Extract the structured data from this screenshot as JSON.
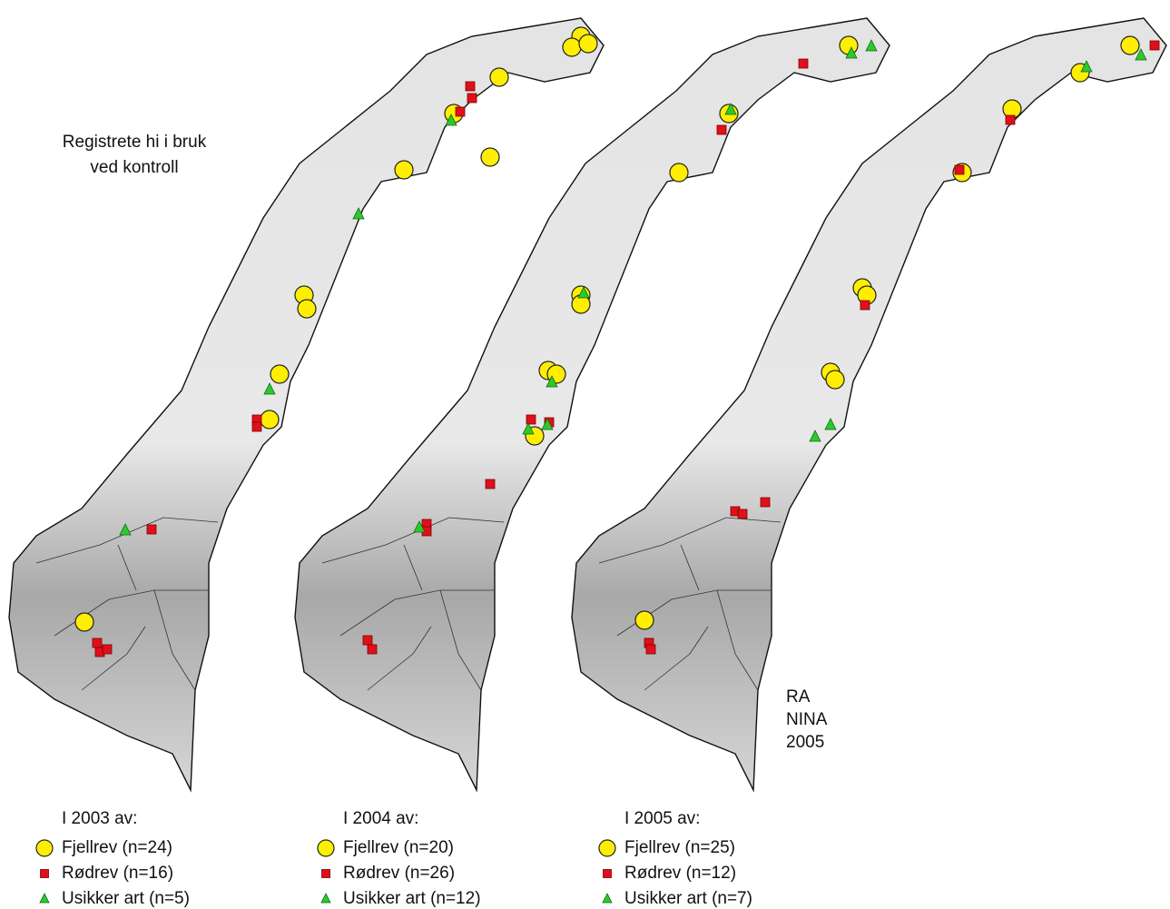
{
  "title": [
    "Registrete hi i bruk",
    "ved kontroll"
  ],
  "panels": [
    {
      "heading": "I 2003 av:",
      "legend": [
        "Fjellrev (n=24)",
        "Rødrev (n=16)",
        "Usikker art (n=5)"
      ]
    },
    {
      "heading": "I 2004 av:",
      "legend": [
        "Fjellrev (n=20)",
        "Rødrev (n=26)",
        "Usikker art (n=12)"
      ]
    },
    {
      "heading": "I 2005 av:",
      "legend": [
        "Fjellrev (n=25)",
        "Rødrev (n=12)",
        "Usikker art (n=7)"
      ]
    }
  ],
  "credit": [
    "RA",
    "NINA",
    "2005"
  ]
}
